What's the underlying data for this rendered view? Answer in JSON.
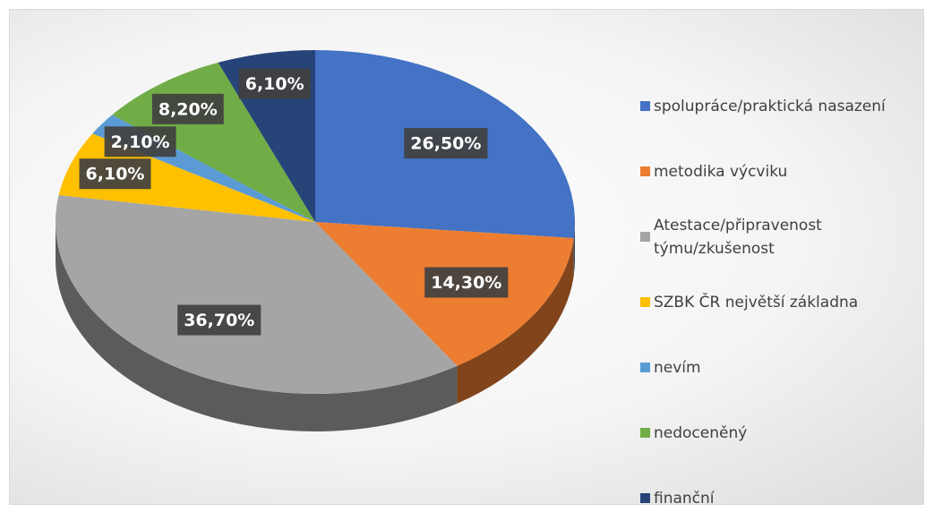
{
  "chart_data": {
    "type": "pie",
    "categories": [
      "spolupráce/praktická nasazení",
      "metodika výcviku",
      "Atestace/připravenost týmu/zkušenost",
      "SZBK ČR největší základna",
      "nevím",
      "nedoceněný",
      "finanční"
    ],
    "values": [
      26.5,
      14.3,
      36.7,
      6.1,
      2.1,
      8.2,
      6.1
    ],
    "value_labels": [
      "26,50%",
      "14,30%",
      "36,70%",
      "6,10%",
      "2,10%",
      "8,20%",
      "6,10%"
    ],
    "colors": [
      "#4472c4",
      "#ed7d31",
      "#a5a5a5",
      "#ffc000",
      "#5b9bd5",
      "#70ad47",
      "#264478"
    ],
    "legend": "right"
  }
}
